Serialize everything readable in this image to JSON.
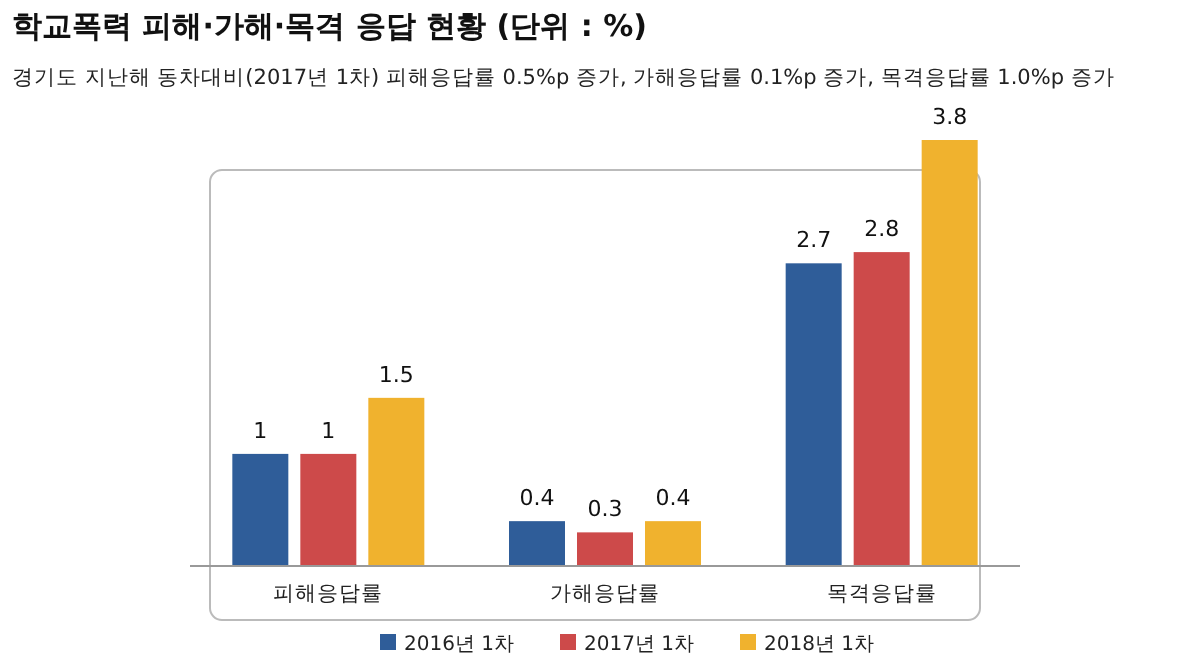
{
  "chart_data": {
    "type": "bar",
    "title": "학교폭력 피해·가해·목격 응답 현황 (단위 : %)",
    "subtitle": "경기도 지난해 동차대비(2017년 1차) 피해응답률 0.5%p 증가, 가해응답률 0.1%p 증가, 목격응답률 1.0%p 증가",
    "categories": [
      "피해응답률",
      "가해응답률",
      "목격응답률"
    ],
    "series": [
      {
        "name": "2016년 1차",
        "color": "#2f5d99",
        "values": [
          1,
          0.4,
          2.7
        ]
      },
      {
        "name": "2017년 1차",
        "color": "#cd4a4a",
        "values": [
          1,
          0.3,
          2.8
        ]
      },
      {
        "name": "2018년 1차",
        "color": "#f0b22e",
        "values": [
          1.5,
          0.4,
          3.8
        ]
      }
    ],
    "data_labels": true,
    "legend": "bottom"
  }
}
